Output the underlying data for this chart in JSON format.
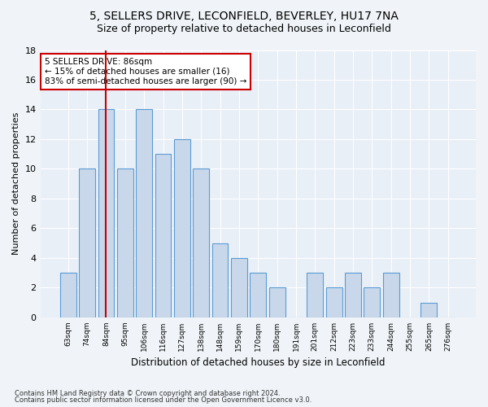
{
  "title1": "5, SELLERS DRIVE, LECONFIELD, BEVERLEY, HU17 7NA",
  "title2": "Size of property relative to detached houses in Leconfield",
  "xlabel": "Distribution of detached houses by size in Leconfield",
  "ylabel": "Number of detached properties",
  "categories": [
    "63sqm",
    "74sqm",
    "84sqm",
    "95sqm",
    "106sqm",
    "116sqm",
    "127sqm",
    "138sqm",
    "148sqm",
    "159sqm",
    "170sqm",
    "180sqm",
    "191sqm",
    "201sqm",
    "212sqm",
    "223sqm",
    "233sqm",
    "244sqm",
    "255sqm",
    "265sqm",
    "276sqm"
  ],
  "values": [
    3,
    10,
    14,
    10,
    14,
    11,
    12,
    10,
    5,
    4,
    3,
    2,
    0,
    3,
    2,
    3,
    2,
    3,
    0,
    1,
    0
  ],
  "bar_color": "#c8d8ea",
  "bar_edge_color": "#5b9bd5",
  "highlight_index": 2,
  "highlight_line_color": "#cc0000",
  "annotation_box_facecolor": "#ffffff",
  "annotation_box_edgecolor": "#cc0000",
  "annotation_text_line1": "5 SELLERS DRIVE: 86sqm",
  "annotation_text_line2": "← 15% of detached houses are smaller (16)",
  "annotation_text_line3": "83% of semi-detached houses are larger (90) →",
  "ylim": [
    0,
    18
  ],
  "yticks": [
    0,
    2,
    4,
    6,
    8,
    10,
    12,
    14,
    16,
    18
  ],
  "footer1": "Contains HM Land Registry data © Crown copyright and database right 2024.",
  "footer2": "Contains public sector information licensed under the Open Government Licence v3.0.",
  "fig_bg": "#f0f4f8",
  "plot_bg": "#e8eff7",
  "grid_color": "#ffffff",
  "title1_fontsize": 10,
  "title2_fontsize": 9
}
